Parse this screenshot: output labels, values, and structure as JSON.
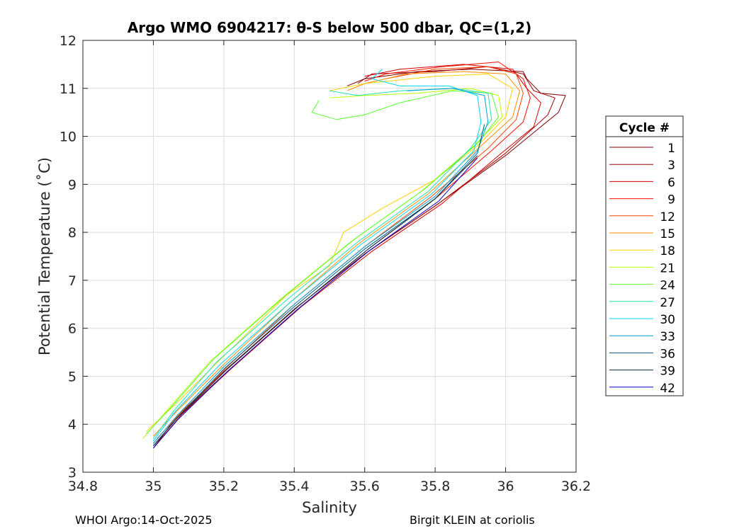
{
  "chart_data": {
    "type": "line",
    "title": "Argo WMO 6904217: θ-S below 500 dbar,  QC=(1,2)",
    "xlabel": "Salinity",
    "ylabel": "Potential Temperature (˚C)",
    "xlim": [
      34.8,
      36.2
    ],
    "ylim": [
      3,
      12
    ],
    "xticks": [
      "34.8",
      "35",
      "35.2",
      "35.4",
      "35.6",
      "35.8",
      "36",
      "36.2"
    ],
    "yticks": [
      "3",
      "4",
      "5",
      "6",
      "7",
      "8",
      "9",
      "10",
      "11",
      "12"
    ],
    "grid": true,
    "legend": {
      "title": "Cycle #",
      "placement": "right-outside",
      "entries": [
        {
          "label": "1",
          "color": "#7f0000"
        },
        {
          "label": "3",
          "color": "#a20000"
        },
        {
          "label": "6",
          "color": "#d40000"
        },
        {
          "label": "9",
          "color": "#f71000"
        },
        {
          "label": "12",
          "color": "#ff4200"
        },
        {
          "label": "15",
          "color": "#ff8c00"
        },
        {
          "label": "18",
          "color": "#ffd000"
        },
        {
          "label": "21",
          "color": "#b4ff00"
        },
        {
          "label": "24",
          "color": "#5aff30"
        },
        {
          "label": "27",
          "color": "#1ee2b4"
        },
        {
          "label": "30",
          "color": "#00d4ff"
        },
        {
          "label": "33",
          "color": "#00a0d0"
        },
        {
          "label": "36",
          "color": "#005a80"
        },
        {
          "label": "39",
          "color": "#00304a"
        },
        {
          "label": "42",
          "color": "#0000cc"
        }
      ]
    },
    "series": [
      {
        "color": "#7f0000",
        "points": [
          [
            35.0,
            3.5
          ],
          [
            35.06,
            4.1
          ],
          [
            35.2,
            5.1
          ],
          [
            35.4,
            6.4
          ],
          [
            35.6,
            7.55
          ],
          [
            35.8,
            8.55
          ],
          [
            36.0,
            9.6
          ],
          [
            36.15,
            10.5
          ],
          [
            36.17,
            10.85
          ],
          [
            36.1,
            10.9
          ],
          [
            36.06,
            11.2
          ],
          [
            36.05,
            11.35
          ],
          [
            35.9,
            11.4
          ],
          [
            35.75,
            11.35
          ],
          [
            35.6,
            11.2
          ],
          [
            35.55,
            11.05
          ]
        ]
      },
      {
        "color": "#a20000",
        "points": [
          [
            35.0,
            3.55
          ],
          [
            35.07,
            4.15
          ],
          [
            35.21,
            5.1
          ],
          [
            35.41,
            6.4
          ],
          [
            35.61,
            7.6
          ],
          [
            35.81,
            8.6
          ],
          [
            36.0,
            9.65
          ],
          [
            36.12,
            10.45
          ],
          [
            36.14,
            10.8
          ],
          [
            36.08,
            10.95
          ],
          [
            36.05,
            11.3
          ],
          [
            35.95,
            11.45
          ],
          [
            35.8,
            11.35
          ],
          [
            35.62,
            11.3
          ],
          [
            35.58,
            11.1
          ]
        ]
      },
      {
        "color": "#d40000",
        "points": [
          [
            35.01,
            3.6
          ],
          [
            35.08,
            4.2
          ],
          [
            35.22,
            5.15
          ],
          [
            35.42,
            6.45
          ],
          [
            35.62,
            7.6
          ],
          [
            35.82,
            8.6
          ],
          [
            35.98,
            9.6
          ],
          [
            36.08,
            10.2
          ],
          [
            36.1,
            10.7
          ],
          [
            36.06,
            11.0
          ],
          [
            36.02,
            11.4
          ],
          [
            35.88,
            11.5
          ],
          [
            35.7,
            11.4
          ],
          [
            35.6,
            11.25
          ]
        ]
      },
      {
        "color": "#f71000",
        "points": [
          [
            35.0,
            3.6
          ],
          [
            35.07,
            4.2
          ],
          [
            35.21,
            5.15
          ],
          [
            35.41,
            6.45
          ],
          [
            35.61,
            7.65
          ],
          [
            35.8,
            8.7
          ],
          [
            35.96,
            9.7
          ],
          [
            36.05,
            10.3
          ],
          [
            36.07,
            10.8
          ],
          [
            36.05,
            11.2
          ],
          [
            35.98,
            11.55
          ],
          [
            35.82,
            11.45
          ],
          [
            35.66,
            11.3
          ],
          [
            35.6,
            11.15
          ]
        ]
      },
      {
        "color": "#ff4200",
        "points": [
          [
            35.01,
            3.7
          ],
          [
            35.08,
            4.25
          ],
          [
            35.21,
            5.2
          ],
          [
            35.4,
            6.5
          ],
          [
            35.6,
            7.7
          ],
          [
            35.79,
            8.75
          ],
          [
            35.95,
            9.75
          ],
          [
            36.03,
            10.35
          ],
          [
            36.05,
            10.9
          ],
          [
            36.03,
            11.3
          ],
          [
            35.95,
            11.45
          ],
          [
            35.8,
            11.4
          ],
          [
            35.66,
            11.2
          ]
        ]
      },
      {
        "color": "#ff8c00",
        "points": [
          [
            35.0,
            3.75
          ],
          [
            35.07,
            4.3
          ],
          [
            35.2,
            5.25
          ],
          [
            35.39,
            6.55
          ],
          [
            35.58,
            7.75
          ],
          [
            35.78,
            8.8
          ],
          [
            35.93,
            9.8
          ],
          [
            36.02,
            10.4
          ],
          [
            36.04,
            10.95
          ],
          [
            36.0,
            11.3
          ],
          [
            35.88,
            11.35
          ],
          [
            35.72,
            11.3
          ],
          [
            35.6,
            11.1
          ],
          [
            35.55,
            10.95
          ]
        ]
      },
      {
        "color": "#ffd000",
        "points": [
          [
            34.98,
            3.85
          ],
          [
            35.06,
            4.4
          ],
          [
            35.19,
            5.35
          ],
          [
            35.38,
            6.7
          ],
          [
            35.5,
            7.3
          ],
          [
            35.54,
            8.0
          ],
          [
            35.65,
            8.5
          ],
          [
            35.8,
            9.1
          ],
          [
            35.92,
            9.8
          ],
          [
            36.0,
            10.4
          ],
          [
            36.02,
            11.0
          ],
          [
            35.95,
            11.3
          ],
          [
            35.8,
            11.25
          ],
          [
            35.6,
            11.1
          ],
          [
            35.5,
            10.95
          ]
        ]
      },
      {
        "color": "#b4ff00",
        "points": [
          [
            34.97,
            3.7
          ],
          [
            35.04,
            4.3
          ],
          [
            35.16,
            5.3
          ],
          [
            35.36,
            6.6
          ],
          [
            35.56,
            7.8
          ],
          [
            35.76,
            8.85
          ],
          [
            35.91,
            9.8
          ],
          [
            35.99,
            10.4
          ],
          [
            35.98,
            10.85
          ],
          [
            35.9,
            11.0
          ],
          [
            35.75,
            10.9
          ],
          [
            35.6,
            10.85
          ],
          [
            35.5,
            10.8
          ]
        ]
      },
      {
        "color": "#5aff30",
        "points": [
          [
            34.98,
            3.8
          ],
          [
            35.05,
            4.35
          ],
          [
            35.17,
            5.35
          ],
          [
            35.37,
            6.65
          ],
          [
            35.57,
            7.85
          ],
          [
            35.77,
            8.9
          ],
          [
            35.92,
            9.85
          ],
          [
            35.98,
            10.4
          ],
          [
            35.96,
            10.9
          ],
          [
            35.85,
            10.95
          ],
          [
            35.7,
            10.7
          ],
          [
            35.6,
            10.45
          ],
          [
            35.52,
            10.35
          ],
          [
            35.45,
            10.5
          ],
          [
            35.47,
            10.75
          ]
        ]
      },
      {
        "color": "#1ee2b4",
        "points": [
          [
            35.0,
            3.7
          ],
          [
            35.06,
            4.3
          ],
          [
            35.18,
            5.3
          ],
          [
            35.38,
            6.6
          ],
          [
            35.58,
            7.8
          ],
          [
            35.78,
            8.85
          ],
          [
            35.9,
            9.75
          ],
          [
            35.96,
            10.35
          ],
          [
            35.95,
            10.9
          ],
          [
            35.85,
            11.0
          ],
          [
            35.7,
            10.95
          ],
          [
            35.58,
            10.85
          ],
          [
            35.5,
            10.95
          ]
        ]
      },
      {
        "color": "#00d4ff",
        "points": [
          [
            35.0,
            3.65
          ],
          [
            35.06,
            4.25
          ],
          [
            35.19,
            5.25
          ],
          [
            35.39,
            6.55
          ],
          [
            35.59,
            7.75
          ],
          [
            35.79,
            8.8
          ],
          [
            35.91,
            9.7
          ],
          [
            35.93,
            10.3
          ],
          [
            35.92,
            10.85
          ],
          [
            35.84,
            11.05
          ],
          [
            35.7,
            11.05
          ],
          [
            35.62,
            11.2
          ],
          [
            35.65,
            11.4
          ]
        ]
      },
      {
        "color": "#00a0d0",
        "points": [
          [
            35.0,
            3.6
          ],
          [
            35.07,
            4.2
          ],
          [
            35.2,
            5.2
          ],
          [
            35.4,
            6.5
          ],
          [
            35.6,
            7.7
          ],
          [
            35.8,
            8.75
          ],
          [
            35.92,
            9.7
          ],
          [
            35.95,
            10.3
          ],
          [
            35.94,
            10.85
          ],
          [
            35.85,
            11.0
          ],
          [
            35.72,
            10.95
          ]
        ]
      },
      {
        "color": "#005a80",
        "points": [
          [
            35.0,
            3.55
          ],
          [
            35.07,
            4.15
          ],
          [
            35.2,
            5.15
          ],
          [
            35.4,
            6.45
          ],
          [
            35.6,
            7.65
          ],
          [
            35.8,
            8.7
          ],
          [
            35.92,
            9.65
          ],
          [
            35.94,
            10.25
          ]
        ]
      },
      {
        "color": "#00304a",
        "points": [
          [
            35.0,
            3.55
          ],
          [
            35.07,
            4.15
          ],
          [
            35.21,
            5.15
          ],
          [
            35.41,
            6.45
          ],
          [
            35.61,
            7.65
          ],
          [
            35.8,
            8.7
          ],
          [
            35.92,
            9.6
          ]
        ]
      },
      {
        "color": "#0000cc",
        "points": [
          [
            35.0,
            3.5
          ],
          [
            35.07,
            4.1
          ],
          [
            35.21,
            5.1
          ],
          [
            35.41,
            6.4
          ],
          [
            35.61,
            7.6
          ],
          [
            35.81,
            8.65
          ],
          [
            35.92,
            9.55
          ]
        ]
      }
    ]
  },
  "footer": {
    "left": "WHOI Argo:14-Oct-2025",
    "right": "Birgit KLEIN at coriolis"
  }
}
